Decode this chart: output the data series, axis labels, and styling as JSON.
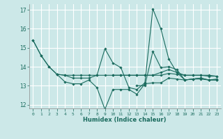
{
  "xlabel": "Humidex (Indice chaleur)",
  "ylabel": "",
  "bg_color": "#cce8e8",
  "grid_color": "#ffffff",
  "line_color": "#1a6b5e",
  "xlim": [
    -0.5,
    23.5
  ],
  "ylim": [
    11.8,
    17.3
  ],
  "yticks": [
    12,
    13,
    14,
    15,
    16,
    17
  ],
  "xticks": [
    0,
    1,
    2,
    3,
    4,
    5,
    6,
    7,
    8,
    9,
    10,
    11,
    12,
    13,
    14,
    15,
    16,
    17,
    18,
    19,
    20,
    21,
    22,
    23
  ],
  "series": [
    [
      15.4,
      14.6,
      14.0,
      13.6,
      13.2,
      13.1,
      13.1,
      13.3,
      12.9,
      11.75,
      12.8,
      12.8,
      12.8,
      12.55,
      13.1,
      13.15,
      13.15,
      13.4,
      13.35,
      13.3,
      13.35,
      13.35,
      13.3,
      13.3
    ],
    [
      15.4,
      14.6,
      14.0,
      13.6,
      13.55,
      13.55,
      13.55,
      13.55,
      13.55,
      13.55,
      13.55,
      13.55,
      13.55,
      13.55,
      13.55,
      13.55,
      13.55,
      13.65,
      13.6,
      13.55,
      13.55,
      13.55,
      13.5,
      13.5
    ],
    [
      null,
      null,
      null,
      13.6,
      13.55,
      13.4,
      13.4,
      13.4,
      13.55,
      14.95,
      14.2,
      13.95,
      12.9,
      12.8,
      13.15,
      17.05,
      16.0,
      14.4,
      13.7,
      13.3,
      13.35,
      13.4,
      13.3,
      13.35
    ],
    [
      null,
      null,
      null,
      null,
      null,
      null,
      null,
      null,
      null,
      null,
      13.55,
      13.55,
      13.55,
      13.55,
      13.55,
      13.55,
      13.7,
      13.85,
      13.7,
      13.55,
      13.55,
      13.55,
      13.55,
      13.5
    ],
    [
      null,
      null,
      null,
      null,
      null,
      null,
      null,
      null,
      null,
      null,
      null,
      null,
      null,
      13.0,
      13.0,
      14.8,
      13.95,
      14.0,
      13.85,
      13.3,
      13.35,
      13.4,
      13.3,
      13.3
    ]
  ]
}
